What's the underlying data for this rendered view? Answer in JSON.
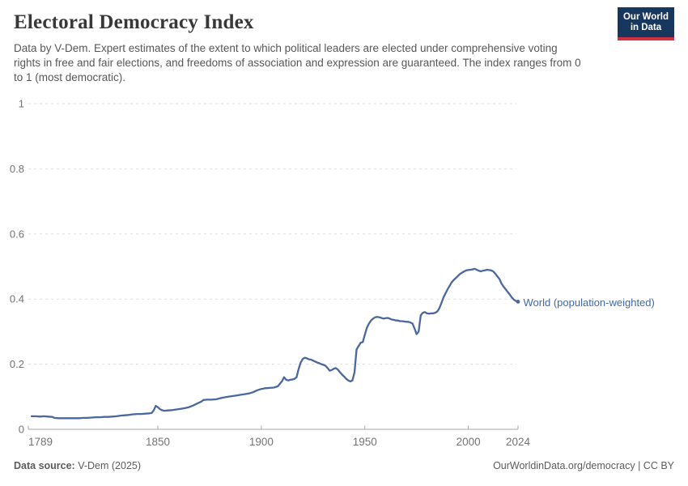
{
  "header": {
    "title": "Electoral Democracy Index",
    "subtitle": "Data by V-Dem. Expert estimates of the extent to which political leaders are elected under comprehensive voting rights in free and fair elections, and freedoms of association and expression are guaranteed. The index ranges from 0 to 1 (most democratic).",
    "logo": {
      "line1": "Our World",
      "line2": "in Data",
      "bg_color": "#18375f",
      "bar_color": "#cf3140"
    }
  },
  "chart_data": {
    "type": "line",
    "title": "Electoral Democracy Index",
    "xlabel": "",
    "ylabel": "",
    "xlim": [
      1789,
      2024
    ],
    "ylim": [
      0,
      1
    ],
    "x_ticks": [
      1789,
      1850,
      1900,
      1950,
      2000,
      2024
    ],
    "y_ticks": [
      0,
      0.2,
      0.4,
      0.6,
      0.8,
      1
    ],
    "grid": "horizontal-dashed",
    "legend_position": "end-of-line-label",
    "colors": {
      "line": "#4a689f",
      "label": "#3f68ad",
      "grid": "#dfdfdf",
      "axis": "#a6a6a6",
      "tick_text": "#737373"
    },
    "series": [
      {
        "name": "World (population-weighted)",
        "points": [
          [
            1789,
            0.04
          ],
          [
            1791,
            0.04
          ],
          [
            1793,
            0.039
          ],
          [
            1795,
            0.04
          ],
          [
            1797,
            0.039
          ],
          [
            1799,
            0.038
          ],
          [
            1800,
            0.035
          ],
          [
            1802,
            0.034
          ],
          [
            1804,
            0.034
          ],
          [
            1806,
            0.034
          ],
          [
            1808,
            0.034
          ],
          [
            1810,
            0.034
          ],
          [
            1812,
            0.034
          ],
          [
            1814,
            0.035
          ],
          [
            1816,
            0.035
          ],
          [
            1818,
            0.036
          ],
          [
            1820,
            0.037
          ],
          [
            1822,
            0.037
          ],
          [
            1824,
            0.038
          ],
          [
            1826,
            0.038
          ],
          [
            1828,
            0.039
          ],
          [
            1830,
            0.04
          ],
          [
            1832,
            0.042
          ],
          [
            1834,
            0.043
          ],
          [
            1836,
            0.044
          ],
          [
            1838,
            0.046
          ],
          [
            1840,
            0.047
          ],
          [
            1842,
            0.047
          ],
          [
            1844,
            0.048
          ],
          [
            1846,
            0.049
          ],
          [
            1847,
            0.05
          ],
          [
            1848,
            0.058
          ],
          [
            1849,
            0.072
          ],
          [
            1850,
            0.068
          ],
          [
            1851,
            0.062
          ],
          [
            1852,
            0.059
          ],
          [
            1853,
            0.057
          ],
          [
            1855,
            0.058
          ],
          [
            1857,
            0.059
          ],
          [
            1859,
            0.061
          ],
          [
            1861,
            0.063
          ],
          [
            1863,
            0.065
          ],
          [
            1865,
            0.068
          ],
          [
            1867,
            0.073
          ],
          [
            1869,
            0.079
          ],
          [
            1871,
            0.085
          ],
          [
            1872,
            0.09
          ],
          [
            1874,
            0.091
          ],
          [
            1876,
            0.091
          ],
          [
            1878,
            0.092
          ],
          [
            1880,
            0.095
          ],
          [
            1882,
            0.098
          ],
          [
            1884,
            0.1
          ],
          [
            1886,
            0.102
          ],
          [
            1888,
            0.104
          ],
          [
            1890,
            0.106
          ],
          [
            1892,
            0.108
          ],
          [
            1894,
            0.11
          ],
          [
            1896,
            0.114
          ],
          [
            1898,
            0.12
          ],
          [
            1900,
            0.124
          ],
          [
            1902,
            0.126
          ],
          [
            1904,
            0.127
          ],
          [
            1906,
            0.128
          ],
          [
            1908,
            0.132
          ],
          [
            1910,
            0.148
          ],
          [
            1911,
            0.16
          ],
          [
            1912,
            0.152
          ],
          [
            1913,
            0.15
          ],
          [
            1914,
            0.152
          ],
          [
            1915,
            0.153
          ],
          [
            1916,
            0.155
          ],
          [
            1917,
            0.16
          ],
          [
            1918,
            0.185
          ],
          [
            1919,
            0.205
          ],
          [
            1920,
            0.216
          ],
          [
            1921,
            0.22
          ],
          [
            1922,
            0.218
          ],
          [
            1923,
            0.215
          ],
          [
            1924,
            0.214
          ],
          [
            1925,
            0.211
          ],
          [
            1926,
            0.208
          ],
          [
            1927,
            0.205
          ],
          [
            1928,
            0.203
          ],
          [
            1929,
            0.2
          ],
          [
            1930,
            0.198
          ],
          [
            1931,
            0.195
          ],
          [
            1932,
            0.188
          ],
          [
            1933,
            0.18
          ],
          [
            1934,
            0.182
          ],
          [
            1935,
            0.186
          ],
          [
            1936,
            0.188
          ],
          [
            1937,
            0.183
          ],
          [
            1938,
            0.175
          ],
          [
            1939,
            0.168
          ],
          [
            1940,
            0.162
          ],
          [
            1941,
            0.155
          ],
          [
            1942,
            0.15
          ],
          [
            1943,
            0.147
          ],
          [
            1944,
            0.15
          ],
          [
            1945,
            0.175
          ],
          [
            1946,
            0.245
          ],
          [
            1947,
            0.256
          ],
          [
            1948,
            0.266
          ],
          [
            1949,
            0.268
          ],
          [
            1950,
            0.29
          ],
          [
            1951,
            0.312
          ],
          [
            1952,
            0.325
          ],
          [
            1953,
            0.334
          ],
          [
            1954,
            0.34
          ],
          [
            1955,
            0.344
          ],
          [
            1956,
            0.345
          ],
          [
            1957,
            0.344
          ],
          [
            1958,
            0.342
          ],
          [
            1959,
            0.34
          ],
          [
            1960,
            0.341
          ],
          [
            1961,
            0.342
          ],
          [
            1962,
            0.34
          ],
          [
            1963,
            0.337
          ],
          [
            1964,
            0.336
          ],
          [
            1965,
            0.334
          ],
          [
            1966,
            0.334
          ],
          [
            1967,
            0.332
          ],
          [
            1968,
            0.332
          ],
          [
            1969,
            0.331
          ],
          [
            1970,
            0.33
          ],
          [
            1971,
            0.33
          ],
          [
            1972,
            0.328
          ],
          [
            1973,
            0.325
          ],
          [
            1974,
            0.31
          ],
          [
            1975,
            0.292
          ],
          [
            1976,
            0.3
          ],
          [
            1977,
            0.35
          ],
          [
            1978,
            0.358
          ],
          [
            1979,
            0.36
          ],
          [
            1980,
            0.356
          ],
          [
            1981,
            0.355
          ],
          [
            1982,
            0.356
          ],
          [
            1983,
            0.356
          ],
          [
            1984,
            0.358
          ],
          [
            1985,
            0.362
          ],
          [
            1986,
            0.372
          ],
          [
            1987,
            0.388
          ],
          [
            1988,
            0.405
          ],
          [
            1989,
            0.418
          ],
          [
            1990,
            0.43
          ],
          [
            1991,
            0.441
          ],
          [
            1992,
            0.452
          ],
          [
            1993,
            0.459
          ],
          [
            1994,
            0.465
          ],
          [
            1995,
            0.471
          ],
          [
            1996,
            0.477
          ],
          [
            1997,
            0.481
          ],
          [
            1998,
            0.485
          ],
          [
            1999,
            0.488
          ],
          [
            2000,
            0.489
          ],
          [
            2001,
            0.49
          ],
          [
            2002,
            0.491
          ],
          [
            2003,
            0.493
          ],
          [
            2004,
            0.49
          ],
          [
            2005,
            0.487
          ],
          [
            2006,
            0.485
          ],
          [
            2007,
            0.487
          ],
          [
            2008,
            0.488
          ],
          [
            2009,
            0.49
          ],
          [
            2010,
            0.489
          ],
          [
            2011,
            0.488
          ],
          [
            2012,
            0.485
          ],
          [
            2013,
            0.478
          ],
          [
            2014,
            0.47
          ],
          [
            2015,
            0.462
          ],
          [
            2016,
            0.448
          ],
          [
            2017,
            0.438
          ],
          [
            2018,
            0.43
          ],
          [
            2019,
            0.422
          ],
          [
            2020,
            0.414
          ],
          [
            2021,
            0.405
          ],
          [
            2022,
            0.398
          ],
          [
            2023,
            0.394
          ],
          [
            2024,
            0.392
          ]
        ]
      }
    ]
  },
  "footer": {
    "source_label": "Data source:",
    "source_value": " V-Dem (2025)",
    "credit": "OurWorldinData.org/democracy | CC BY"
  }
}
